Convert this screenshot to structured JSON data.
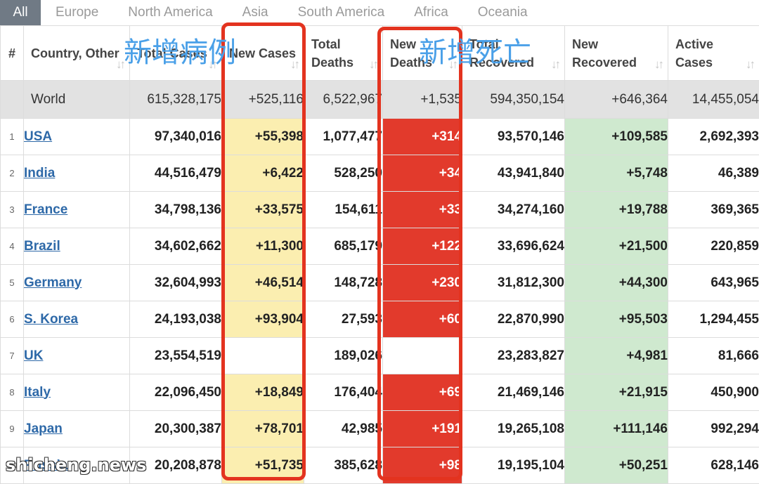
{
  "tabs": [
    "All",
    "Europe",
    "North America",
    "Asia",
    "South America",
    "Africa",
    "Oceania"
  ],
  "headers": {
    "rank": "#",
    "country": "Country, Other",
    "total_cases": "Total Cases",
    "new_cases": "New Cases",
    "total_deaths": "Total Deaths",
    "new_deaths": "New Deaths",
    "total_recovered": "Total Recovered",
    "new_recovered": "New Recovered",
    "active_cases": "Active Cases"
  },
  "world": {
    "country": "World",
    "total_cases": "615,328,175",
    "new_cases": "+525,116",
    "total_deaths": "6,522,967",
    "new_deaths": "+1,535",
    "total_recovered": "594,350,154",
    "new_recovered": "+646,364",
    "active_cases": "14,455,054"
  },
  "rows": [
    {
      "rank": "1",
      "country": "USA",
      "total_cases": "97,340,016",
      "new_cases": "+55,398",
      "total_deaths": "1,077,477",
      "new_deaths": "+314",
      "total_recovered": "93,570,146",
      "new_recovered": "+109,585",
      "active_cases": "2,692,393"
    },
    {
      "rank": "2",
      "country": "India",
      "total_cases": "44,516,479",
      "new_cases": "+6,422",
      "total_deaths": "528,250",
      "new_deaths": "+34",
      "total_recovered": "43,941,840",
      "new_recovered": "+5,748",
      "active_cases": "46,389"
    },
    {
      "rank": "3",
      "country": "France",
      "total_cases": "34,798,136",
      "new_cases": "+33,575",
      "total_deaths": "154,611",
      "new_deaths": "+33",
      "total_recovered": "34,274,160",
      "new_recovered": "+19,788",
      "active_cases": "369,365"
    },
    {
      "rank": "4",
      "country": "Brazil",
      "total_cases": "34,602,662",
      "new_cases": "+11,300",
      "total_deaths": "685,179",
      "new_deaths": "+122",
      "total_recovered": "33,696,624",
      "new_recovered": "+21,500",
      "active_cases": "220,859"
    },
    {
      "rank": "5",
      "country": "Germany",
      "total_cases": "32,604,993",
      "new_cases": "+46,514",
      "total_deaths": "148,728",
      "new_deaths": "+230",
      "total_recovered": "31,812,300",
      "new_recovered": "+44,300",
      "active_cases": "643,965"
    },
    {
      "rank": "6",
      "country": "S. Korea",
      "total_cases": "24,193,038",
      "new_cases": "+93,904",
      "total_deaths": "27,593",
      "new_deaths": "+60",
      "total_recovered": "22,870,990",
      "new_recovered": "+95,503",
      "active_cases": "1,294,455"
    },
    {
      "rank": "7",
      "country": "UK",
      "total_cases": "23,554,519",
      "new_cases": "",
      "total_deaths": "189,026",
      "new_deaths": "",
      "total_recovered": "23,283,827",
      "new_recovered": "+4,981",
      "active_cases": "81,666"
    },
    {
      "rank": "8",
      "country": "Italy",
      "total_cases": "22,096,450",
      "new_cases": "+18,849",
      "total_deaths": "176,404",
      "new_deaths": "+69",
      "total_recovered": "21,469,146",
      "new_recovered": "+21,915",
      "active_cases": "450,900"
    },
    {
      "rank": "9",
      "country": "Japan",
      "total_cases": "20,300,387",
      "new_cases": "+78,701",
      "total_deaths": "42,985",
      "new_deaths": "+191",
      "total_recovered": "19,265,108",
      "new_recovered": "+111,146",
      "active_cases": "992,294"
    },
    {
      "rank": "10",
      "country": "Russia",
      "total_cases": "20,208,878",
      "new_cases": "+51,735",
      "total_deaths": "385,628",
      "new_deaths": "+98",
      "total_recovered": "19,195,104",
      "new_recovered": "+50,251",
      "active_cases": "628,146"
    }
  ],
  "annotations": {
    "new_cases_label": "新增病例",
    "new_deaths_label": "新增死亡"
  },
  "watermark": "shicheng.news",
  "colors": {
    "new_cases_bg": "#fbeeb0",
    "new_deaths_bg": "#e23a2c",
    "new_recovered_bg": "#cfe9cf",
    "world_row_bg": "#e2e2e2",
    "active_tab_bg": "#707a85",
    "link": "#2e69a8",
    "highlight_frame": "#e3331f",
    "annotation_text": "#4aa0e8"
  },
  "icons": {
    "sort": "sort-arrows-icon"
  }
}
